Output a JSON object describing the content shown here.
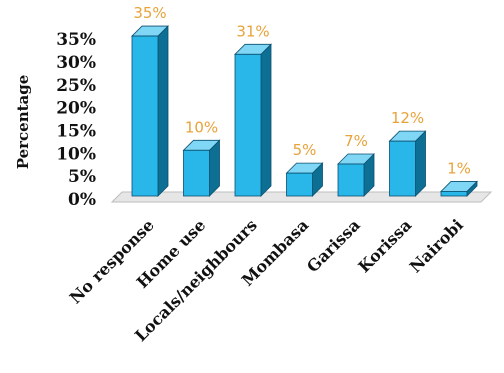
{
  "chart_data": {
    "type": "bar",
    "style": "3d-column",
    "ylabel": "Percentage",
    "xlabel": "",
    "title": "",
    "categories": [
      "No response",
      "Home use",
      "Locals/neighbours",
      "Mombasa",
      "Garissa",
      "Korissa",
      "Nairobi"
    ],
    "values": [
      35,
      10,
      31,
      5,
      7,
      12,
      1
    ],
    "data_labels": [
      "35%",
      "10%",
      "31%",
      "5%",
      "7%",
      "12%",
      "1%"
    ],
    "y_ticks": [
      "0%",
      "5%",
      "10%",
      "15%",
      "20%",
      "25%",
      "30%",
      "35%"
    ],
    "ylim": [
      0,
      35
    ],
    "grid": false,
    "legend": "none",
    "colors": {
      "bar_front": "#29B6E8",
      "bar_side": "#0E6F95",
      "bar_top": "#7FD6F5",
      "bar_edge": "#0B4F6E",
      "data_label": "#E8A33A",
      "floor": "#E6E6E6"
    }
  }
}
